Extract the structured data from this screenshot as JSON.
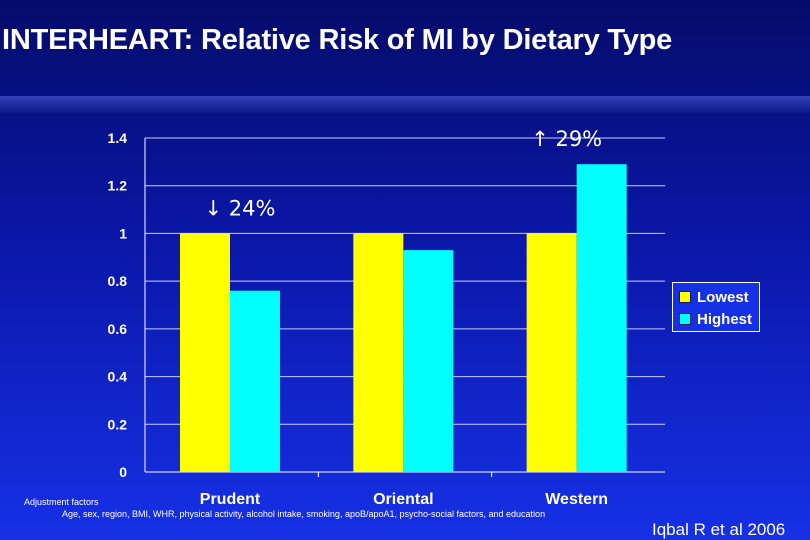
{
  "slide": {
    "title": "INTERHEART: Relative Risk of MI by Dietary Type",
    "adjustment_title": "Adjustment factors",
    "adjustment_text": "Age, sex, region, BMI, WHR, physical activity, alcohol intake, smoking, apoB/apoA1, psycho-social factors, and education",
    "source": "Iqbal R et al 2006"
  },
  "colors": {
    "lowest": "#ffff00",
    "highest": "#00ffff",
    "text": "#ffffff"
  },
  "chart_data": {
    "type": "bar",
    "categories": [
      "Prudent",
      "Oriental",
      "Western"
    ],
    "series": [
      {
        "name": "Lowest",
        "values": [
          1.0,
          1.0,
          1.0
        ]
      },
      {
        "name": "Highest",
        "values": [
          0.76,
          0.93,
          1.29
        ]
      }
    ],
    "ylim": [
      0,
      1.4
    ],
    "yticks": [
      "0",
      "0.2",
      "0.4",
      "0.6",
      "0.8",
      "1",
      "1.2",
      "1.4"
    ],
    "grid": true,
    "legend_position": "right",
    "annotations": [
      {
        "text": "↓ 24%",
        "category": "Prudent"
      },
      {
        "text": "↑ 29%",
        "category": "Western"
      }
    ]
  }
}
